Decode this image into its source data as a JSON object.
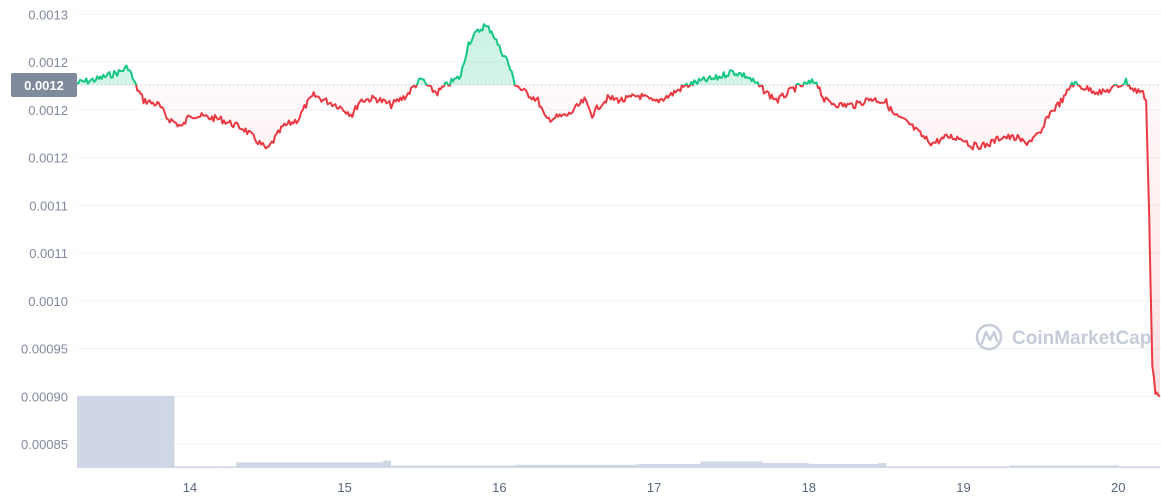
{
  "watermark": "CoinMarketCap",
  "current_price_label": "0.0012",
  "colors": {
    "up": "#16c784",
    "down": "#ea3943",
    "volume": "#cfd6e4",
    "badge": "#808a9d"
  },
  "chart_data": {
    "type": "line",
    "title": "",
    "xlabel": "",
    "ylabel": "",
    "x_unit": "day",
    "xlim": [
      13.27,
      20.27
    ],
    "ylim": [
      0.000825,
      0.001315
    ],
    "grid": true,
    "reference_value": 0.001226,
    "y_tick_values": [
      0.00085,
      0.0009,
      0.00095,
      0.001,
      0.00105,
      0.0011,
      0.00115,
      0.0012,
      0.00125,
      0.0013
    ],
    "y_tick_labels": [
      "0.00085",
      "0.00090",
      "0.00095",
      "0.0010",
      "0.0011",
      "0.0011",
      "0.0012",
      "0.0012",
      "0.0012",
      "0.0013"
    ],
    "x_tick_values": [
      14,
      15,
      16,
      17,
      18,
      19,
      20
    ],
    "x_tick_labels": [
      "14",
      "15",
      "16",
      "17",
      "18",
      "19",
      "20"
    ],
    "series": [
      {
        "kind": "price",
        "x": [
          13.27,
          13.4,
          13.55,
          13.6,
          13.65,
          13.7,
          13.8,
          13.85,
          13.95,
          14.0,
          14.2,
          14.35,
          14.45,
          14.5,
          14.55,
          14.6,
          14.7,
          14.75,
          14.8,
          14.9,
          14.95,
          15.05,
          15.1,
          15.2,
          15.3,
          15.4,
          15.45,
          15.5,
          15.55,
          15.6,
          15.65,
          15.75,
          15.8,
          15.85,
          15.9,
          15.95,
          16.0,
          16.05,
          16.1,
          16.15,
          16.25,
          16.3,
          16.4,
          16.45,
          16.55,
          16.6,
          16.65,
          16.7,
          16.8,
          16.9,
          16.95,
          17.0,
          17.1,
          17.2,
          17.3,
          17.4,
          17.5,
          17.55,
          17.6,
          17.7,
          17.75,
          17.8,
          17.9,
          17.95,
          18.05,
          18.1,
          18.2,
          18.3,
          18.4,
          18.5,
          18.55,
          18.65,
          18.75,
          18.8,
          18.9,
          19.0,
          19.05,
          19.15,
          19.25,
          19.35,
          19.4,
          19.5,
          19.55,
          19.65,
          19.7,
          19.8,
          19.9,
          20.0,
          20.05,
          20.1,
          20.15,
          20.18,
          20.2,
          20.21,
          20.22,
          20.24,
          20.27
        ],
        "y": [
          0.001228,
          0.001232,
          0.00124,
          0.001245,
          0.001225,
          0.00121,
          0.001205,
          0.001192,
          0.001182,
          0.001195,
          0.00119,
          0.00118,
          0.001165,
          0.001158,
          0.00117,
          0.001182,
          0.00119,
          0.001205,
          0.001215,
          0.001208,
          0.001205,
          0.001195,
          0.00121,
          0.001212,
          0.001205,
          0.001215,
          0.001225,
          0.001232,
          0.001222,
          0.001218,
          0.001225,
          0.001235,
          0.00127,
          0.00128,
          0.001288,
          0.001283,
          0.001265,
          0.001252,
          0.001228,
          0.00122,
          0.00121,
          0.00119,
          0.001193,
          0.001195,
          0.00121,
          0.001195,
          0.001205,
          0.001212,
          0.00121,
          0.001215,
          0.001212,
          0.001208,
          0.001215,
          0.001225,
          0.00123,
          0.001233,
          0.00124,
          0.001238,
          0.001235,
          0.001222,
          0.001215,
          0.00121,
          0.001222,
          0.001225,
          0.00123,
          0.00121,
          0.001205,
          0.001205,
          0.001212,
          0.001208,
          0.001195,
          0.001185,
          0.00117,
          0.001165,
          0.001172,
          0.00117,
          0.001162,
          0.001163,
          0.001172,
          0.00117,
          0.001165,
          0.001175,
          0.001195,
          0.001212,
          0.001228,
          0.001222,
          0.001218,
          0.001225,
          0.00123,
          0.00122,
          0.00122,
          0.00121,
          0.00109,
          0.00101,
          0.000935,
          0.000905,
          0.0009
        ]
      },
      {
        "kind": "volume",
        "x": [
          13.27,
          13.85,
          13.9,
          14.2,
          14.3,
          15.1,
          15.25,
          15.3,
          16.0,
          16.1,
          16.9,
          17.3,
          17.7,
          18.0,
          18.45,
          18.5,
          19.3,
          19.65,
          20.0,
          20.27
        ],
        "y": [
          0.88,
          0.88,
          0.02,
          0.02,
          0.07,
          0.07,
          0.09,
          0.03,
          0.03,
          0.04,
          0.05,
          0.08,
          0.06,
          0.05,
          0.06,
          0.02,
          0.03,
          0.03,
          0.02,
          0.02
        ]
      }
    ]
  }
}
